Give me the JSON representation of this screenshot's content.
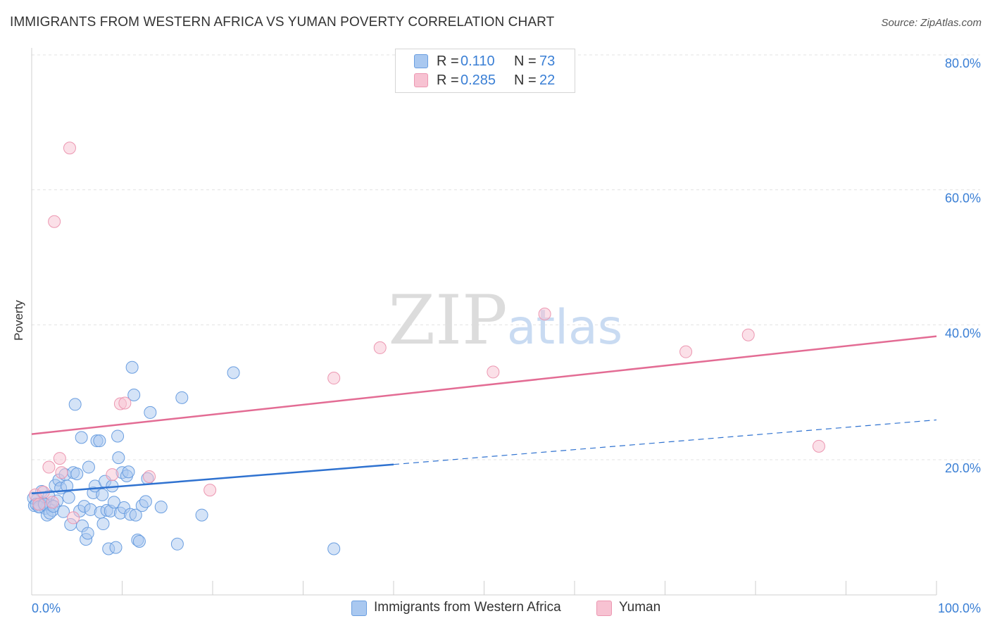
{
  "header": {
    "title": "IMMIGRANTS FROM WESTERN AFRICA VS YUMAN POVERTY CORRELATION CHART",
    "source": "Source: ZipAtlas.com"
  },
  "watermark": {
    "zip": "ZIP",
    "atlas": "atlas"
  },
  "colors": {
    "blue_fill": "#a9c8f0",
    "blue_stroke": "#6a9ee0",
    "blue_line": "#2f72d0",
    "pink_fill": "#f7c2d2",
    "pink_stroke": "#ec97b1",
    "pink_line": "#e36c94",
    "tick_text": "#3a7fd5",
    "grid": "#e3e3e3"
  },
  "legend_top": {
    "rows": [
      {
        "r_label": "R =",
        "r_value": "0.110",
        "n_label": "N =",
        "n_value": "73",
        "series": "blue"
      },
      {
        "r_label": "R =",
        "r_value": "0.285",
        "n_label": "N =",
        "n_value": "22",
        "series": "pink"
      }
    ]
  },
  "legend_bottom": {
    "items": [
      {
        "label": "Immigrants from Western Africa",
        "series": "blue"
      },
      {
        "label": "Yuman",
        "series": "pink"
      }
    ]
  },
  "chart_data": {
    "type": "scatter",
    "title": "IMMIGRANTS FROM WESTERN AFRICA VS YUMAN POVERTY CORRELATION CHART",
    "xlabel": "",
    "ylabel": "Poverty",
    "xlim": [
      0,
      100
    ],
    "ylim": [
      0,
      83
    ],
    "x_tick_labels": [
      "0.0%",
      "100.0%"
    ],
    "y_ticks": [
      20,
      40,
      60,
      80
    ],
    "y_tick_labels": [
      "20.0%",
      "40.0%",
      "60.0%",
      "80.0%"
    ],
    "grid": true,
    "legend_position": "top-center",
    "series": [
      {
        "name": "Immigrants from Western Africa",
        "color": "blue",
        "r": 0.11,
        "n": 73,
        "trend": {
          "x0": 0,
          "y0": 15.0,
          "x1": 40,
          "y1": 19.3,
          "dash_to_x": 100,
          "dash_to_y": 25.9
        },
        "points": [
          [
            0.3,
            13.2
          ],
          [
            0.6,
            14.1
          ],
          [
            0.9,
            13.0
          ],
          [
            1.1,
            15.3
          ],
          [
            1.3,
            13.6
          ],
          [
            1.5,
            12.8
          ],
          [
            1.7,
            11.8
          ],
          [
            1.9,
            14.6
          ],
          [
            2.1,
            13.3
          ],
          [
            2.3,
            12.5
          ],
          [
            2.6,
            16.2
          ],
          [
            2.8,
            13.9
          ],
          [
            3.0,
            17.0
          ],
          [
            3.2,
            15.8
          ],
          [
            3.5,
            12.3
          ],
          [
            3.7,
            17.8
          ],
          [
            3.9,
            16.1
          ],
          [
            4.1,
            14.4
          ],
          [
            4.3,
            10.4
          ],
          [
            4.6,
            18.1
          ],
          [
            4.8,
            28.2
          ],
          [
            5.0,
            17.9
          ],
          [
            5.3,
            12.4
          ],
          [
            5.5,
            23.3
          ],
          [
            5.6,
            10.2
          ],
          [
            5.8,
            13.1
          ],
          [
            6.0,
            8.2
          ],
          [
            6.2,
            9.1
          ],
          [
            6.3,
            18.9
          ],
          [
            6.5,
            12.6
          ],
          [
            6.8,
            15.1
          ],
          [
            7.0,
            16.1
          ],
          [
            7.2,
            22.8
          ],
          [
            7.5,
            22.8
          ],
          [
            7.6,
            12.2
          ],
          [
            7.8,
            14.8
          ],
          [
            7.9,
            10.5
          ],
          [
            8.1,
            16.8
          ],
          [
            8.3,
            12.5
          ],
          [
            8.5,
            6.8
          ],
          [
            8.7,
            12.4
          ],
          [
            8.9,
            16.1
          ],
          [
            9.1,
            13.7
          ],
          [
            9.3,
            7.0
          ],
          [
            9.5,
            23.5
          ],
          [
            9.6,
            20.3
          ],
          [
            9.8,
            12.1
          ],
          [
            10.0,
            18.1
          ],
          [
            10.2,
            12.9
          ],
          [
            10.5,
            17.6
          ],
          [
            10.7,
            18.2
          ],
          [
            10.9,
            11.9
          ],
          [
            11.1,
            33.7
          ],
          [
            11.3,
            29.6
          ],
          [
            11.5,
            11.8
          ],
          [
            11.7,
            8.1
          ],
          [
            11.9,
            7.9
          ],
          [
            12.2,
            13.2
          ],
          [
            12.6,
            13.8
          ],
          [
            12.8,
            17.2
          ],
          [
            13.1,
            27.0
          ],
          [
            14.3,
            13.0
          ],
          [
            16.1,
            7.5
          ],
          [
            16.6,
            29.2
          ],
          [
            18.8,
            11.8
          ],
          [
            22.3,
            32.9
          ],
          [
            33.4,
            6.8
          ],
          [
            0.2,
            14.3
          ],
          [
            0.5,
            13.4
          ],
          [
            0.8,
            13.0
          ],
          [
            1.4,
            13.4
          ],
          [
            2.0,
            12.1
          ],
          [
            2.4,
            13.1
          ]
        ]
      },
      {
        "name": "Yuman",
        "color": "pink",
        "r": 0.285,
        "n": 22,
        "trend": {
          "x0": 0,
          "y0": 23.8,
          "x1": 100,
          "y1": 38.3
        },
        "points": [
          [
            0.4,
            14.8
          ],
          [
            0.8,
            13.4
          ],
          [
            1.3,
            15.2
          ],
          [
            1.9,
            18.9
          ],
          [
            2.3,
            13.7
          ],
          [
            2.5,
            55.3
          ],
          [
            3.1,
            20.2
          ],
          [
            3.3,
            18.1
          ],
          [
            4.2,
            66.2
          ],
          [
            4.6,
            11.4
          ],
          [
            8.9,
            17.8
          ],
          [
            9.8,
            28.3
          ],
          [
            10.3,
            28.4
          ],
          [
            13.0,
            17.5
          ],
          [
            19.7,
            15.5
          ],
          [
            33.4,
            32.1
          ],
          [
            38.5,
            36.6
          ],
          [
            51.0,
            33.0
          ],
          [
            56.7,
            41.6
          ],
          [
            72.3,
            36.0
          ],
          [
            79.2,
            38.5
          ],
          [
            87.0,
            22.0
          ]
        ]
      }
    ]
  }
}
